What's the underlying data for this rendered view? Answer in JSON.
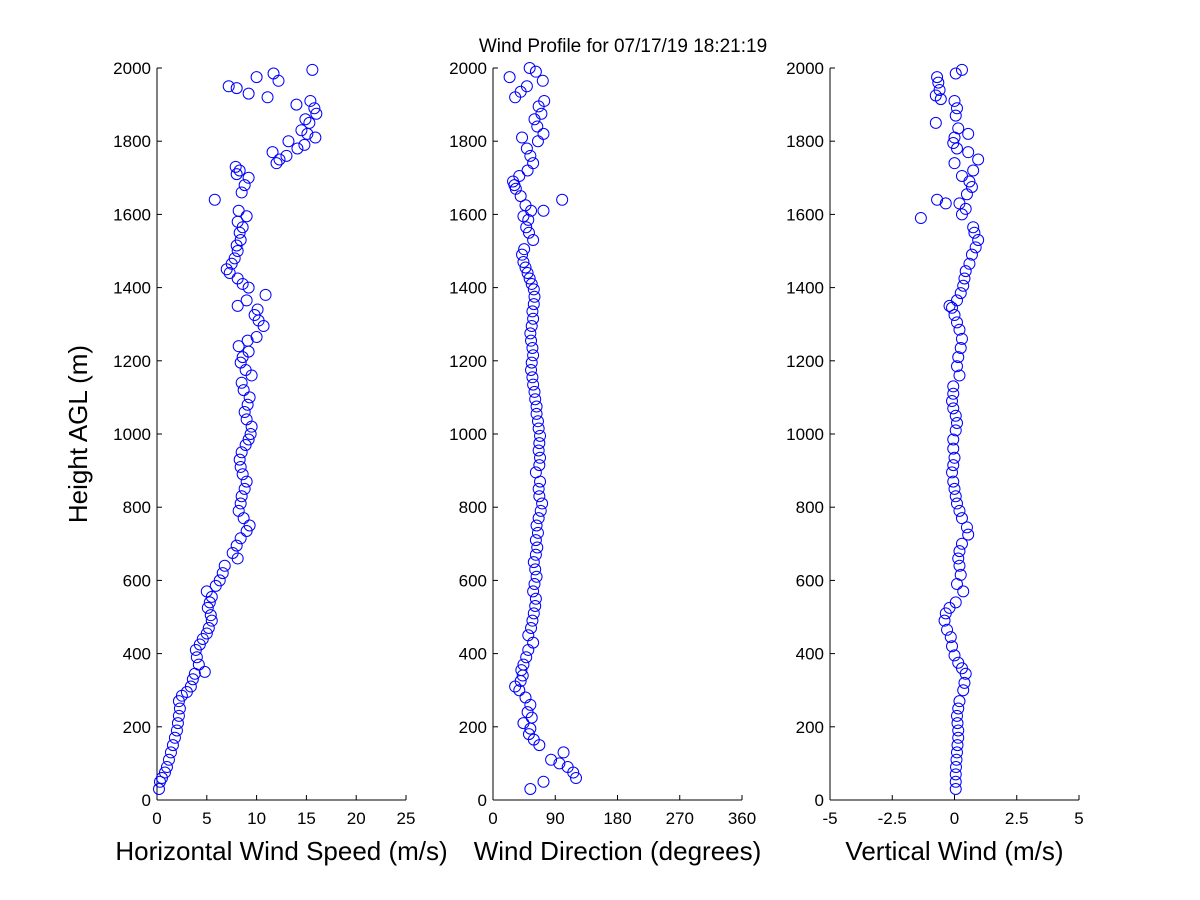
{
  "title": "Wind Profile for  07/17/19 18:21:19",
  "colors": {
    "marker": "#0000ff",
    "axis": "#000000",
    "background": "#ffffff"
  },
  "chart_data": [
    {
      "type": "scatter",
      "xlabel": "Horizontal Wind Speed (m/s)",
      "ylabel": "Height AGL (m)",
      "xlim": [
        0,
        25
      ],
      "ylim": [
        0,
        2000
      ],
      "xticks": [
        0,
        5,
        10,
        15,
        20,
        25
      ],
      "yticks": [
        0,
        200,
        400,
        600,
        800,
        1000,
        1200,
        1400,
        1600,
        1800,
        2000
      ],
      "grid": false,
      "marker": "open-circle",
      "points": [
        [
          0.2,
          30
        ],
        [
          0.3,
          50
        ],
        [
          0.5,
          60
        ],
        [
          0.8,
          75
        ],
        [
          1.0,
          90
        ],
        [
          1.2,
          110
        ],
        [
          1.4,
          130
        ],
        [
          1.6,
          150
        ],
        [
          1.8,
          170
        ],
        [
          2.0,
          190
        ],
        [
          2.1,
          210
        ],
        [
          2.2,
          230
        ],
        [
          2.3,
          250
        ],
        [
          2.2,
          270
        ],
        [
          2.5,
          285
        ],
        [
          3.0,
          295
        ],
        [
          3.4,
          310
        ],
        [
          3.6,
          330
        ],
        [
          3.8,
          345
        ],
        [
          4.8,
          350
        ],
        [
          4.2,
          370
        ],
        [
          4.0,
          390
        ],
        [
          3.9,
          410
        ],
        [
          4.3,
          425
        ],
        [
          4.6,
          440
        ],
        [
          5.0,
          455
        ],
        [
          5.2,
          470
        ],
        [
          5.5,
          490
        ],
        [
          5.4,
          505
        ],
        [
          5.1,
          525
        ],
        [
          5.3,
          540
        ],
        [
          5.5,
          555
        ],
        [
          5.0,
          570
        ],
        [
          5.9,
          585
        ],
        [
          6.3,
          600
        ],
        [
          6.6,
          620
        ],
        [
          6.8,
          640
        ],
        [
          8.1,
          660
        ],
        [
          7.6,
          675
        ],
        [
          8.0,
          695
        ],
        [
          8.4,
          715
        ],
        [
          9.0,
          735
        ],
        [
          9.3,
          750
        ],
        [
          8.7,
          770
        ],
        [
          8.2,
          790
        ],
        [
          8.4,
          810
        ],
        [
          8.5,
          830
        ],
        [
          8.8,
          850
        ],
        [
          9.0,
          870
        ],
        [
          8.6,
          890
        ],
        [
          8.4,
          910
        ],
        [
          8.3,
          930
        ],
        [
          8.5,
          950
        ],
        [
          8.9,
          970
        ],
        [
          9.2,
          985
        ],
        [
          9.4,
          1000
        ],
        [
          9.5,
          1020
        ],
        [
          9.0,
          1040
        ],
        [
          8.8,
          1060
        ],
        [
          9.1,
          1080
        ],
        [
          9.3,
          1100
        ],
        [
          8.7,
          1120
        ],
        [
          8.5,
          1140
        ],
        [
          9.5,
          1160
        ],
        [
          8.9,
          1175
        ],
        [
          8.4,
          1195
        ],
        [
          8.6,
          1210
        ],
        [
          9.2,
          1225
        ],
        [
          8.2,
          1240
        ],
        [
          9.1,
          1255
        ],
        [
          10.0,
          1265
        ],
        [
          10.7,
          1295
        ],
        [
          10.2,
          1310
        ],
        [
          9.8,
          1325
        ],
        [
          10.1,
          1340
        ],
        [
          8.1,
          1350
        ],
        [
          9.0,
          1365
        ],
        [
          10.9,
          1380
        ],
        [
          9.2,
          1400
        ],
        [
          8.6,
          1410
        ],
        [
          8.1,
          1425
        ],
        [
          7.3,
          1440
        ],
        [
          7.0,
          1450
        ],
        [
          7.5,
          1465
        ],
        [
          7.8,
          1480
        ],
        [
          8.1,
          1500
        ],
        [
          8.0,
          1515
        ],
        [
          8.4,
          1530
        ],
        [
          8.3,
          1550
        ],
        [
          8.6,
          1565
        ],
        [
          8.1,
          1580
        ],
        [
          9.0,
          1595
        ],
        [
          8.2,
          1610
        ],
        [
          5.8,
          1640
        ],
        [
          8.5,
          1660
        ],
        [
          8.8,
          1680
        ],
        [
          9.2,
          1700
        ],
        [
          8.0,
          1710
        ],
        [
          8.3,
          1720
        ],
        [
          7.9,
          1730
        ],
        [
          12.0,
          1740
        ],
        [
          12.3,
          1750
        ],
        [
          11.6,
          1770
        ],
        [
          13.0,
          1760
        ],
        [
          14.1,
          1780
        ],
        [
          13.2,
          1800
        ],
        [
          14.8,
          1790
        ],
        [
          15.1,
          1820
        ],
        [
          15.9,
          1810
        ],
        [
          14.5,
          1830
        ],
        [
          15.3,
          1850
        ],
        [
          14.9,
          1860
        ],
        [
          16.0,
          1875
        ],
        [
          15.8,
          1890
        ],
        [
          14.0,
          1900
        ],
        [
          15.4,
          1910
        ],
        [
          11.1,
          1920
        ],
        [
          9.2,
          1930
        ],
        [
          8.0,
          1945
        ],
        [
          7.2,
          1950
        ],
        [
          12.2,
          1965
        ],
        [
          10.0,
          1975
        ],
        [
          11.7,
          1985
        ],
        [
          15.6,
          1995
        ]
      ]
    },
    {
      "type": "scatter",
      "xlabel": "Wind Direction (degrees)",
      "xlim": [
        0,
        360
      ],
      "ylim": [
        0,
        2000
      ],
      "xticks": [
        0,
        90,
        180,
        270,
        360
      ],
      "yticks": [
        0,
        200,
        400,
        600,
        800,
        1000,
        1200,
        1400,
        1600,
        1800,
        2000
      ],
      "grid": false,
      "marker": "open-circle",
      "points": [
        [
          54,
          30
        ],
        [
          73,
          50
        ],
        [
          120,
          60
        ],
        [
          116,
          75
        ],
        [
          108,
          90
        ],
        [
          96,
          100
        ],
        [
          84,
          110
        ],
        [
          102,
          130
        ],
        [
          67,
          150
        ],
        [
          59,
          165
        ],
        [
          52,
          180
        ],
        [
          54,
          195
        ],
        [
          44,
          210
        ],
        [
          56,
          225
        ],
        [
          50,
          240
        ],
        [
          54,
          260
        ],
        [
          47,
          280
        ],
        [
          38,
          300
        ],
        [
          32,
          310
        ],
        [
          40,
          325
        ],
        [
          43,
          340
        ],
        [
          41,
          355
        ],
        [
          44,
          370
        ],
        [
          48,
          390
        ],
        [
          51,
          410
        ],
        [
          58,
          430
        ],
        [
          51,
          450
        ],
        [
          55,
          470
        ],
        [
          57,
          490
        ],
        [
          59,
          510
        ],
        [
          61,
          530
        ],
        [
          62,
          550
        ],
        [
          58,
          570
        ],
        [
          60,
          590
        ],
        [
          63,
          610
        ],
        [
          61,
          630
        ],
        [
          59,
          650
        ],
        [
          62,
          670
        ],
        [
          64,
          690
        ],
        [
          62,
          710
        ],
        [
          65,
          730
        ],
        [
          63,
          750
        ],
        [
          66,
          770
        ],
        [
          69,
          790
        ],
        [
          71,
          810
        ],
        [
          67,
          830
        ],
        [
          66,
          850
        ],
        [
          68,
          870
        ],
        [
          62,
          895
        ],
        [
          67,
          915
        ],
        [
          68,
          935
        ],
        [
          66,
          955
        ],
        [
          67,
          975
        ],
        [
          68,
          995
        ],
        [
          66,
          1015
        ],
        [
          65,
          1035
        ],
        [
          63,
          1055
        ],
        [
          63,
          1075
        ],
        [
          61,
          1095
        ],
        [
          60,
          1115
        ],
        [
          58,
          1135
        ],
        [
          57,
          1155
        ],
        [
          55,
          1175
        ],
        [
          56,
          1195
        ],
        [
          58,
          1215
        ],
        [
          57,
          1235
        ],
        [
          55,
          1255
        ],
        [
          54,
          1275
        ],
        [
          56,
          1295
        ],
        [
          58,
          1315
        ],
        [
          57,
          1335
        ],
        [
          59,
          1355
        ],
        [
          60,
          1375
        ],
        [
          59,
          1395
        ],
        [
          56,
          1410
        ],
        [
          53,
          1425
        ],
        [
          50,
          1440
        ],
        [
          47,
          1455
        ],
        [
          44,
          1470
        ],
        [
          42,
          1490
        ],
        [
          45,
          1505
        ],
        [
          58,
          1530
        ],
        [
          52,
          1550
        ],
        [
          48,
          1565
        ],
        [
          51,
          1585
        ],
        [
          44,
          1595
        ],
        [
          55,
          1610
        ],
        [
          73,
          1610
        ],
        [
          47,
          1625
        ],
        [
          100,
          1640
        ],
        [
          40,
          1650
        ],
        [
          33,
          1670
        ],
        [
          29,
          1690
        ],
        [
          38,
          1705
        ],
        [
          31,
          1680
        ],
        [
          50,
          1720
        ],
        [
          58,
          1740
        ],
        [
          54,
          1760
        ],
        [
          49,
          1780
        ],
        [
          65,
          1800
        ],
        [
          42,
          1810
        ],
        [
          73,
          1820
        ],
        [
          64,
          1840
        ],
        [
          60,
          1860
        ],
        [
          70,
          1875
        ],
        [
          66,
          1895
        ],
        [
          74,
          1910
        ],
        [
          32,
          1920
        ],
        [
          40,
          1935
        ],
        [
          49,
          1950
        ],
        [
          72,
          1965
        ],
        [
          24,
          1975
        ],
        [
          62,
          1990
        ],
        [
          53,
          2000
        ]
      ]
    },
    {
      "type": "scatter",
      "xlabel": "Vertical Wind (m/s)",
      "xlim": [
        -5,
        5
      ],
      "ylim": [
        0,
        2000
      ],
      "xticks": [
        "-5",
        "-2.5",
        "0",
        "2.5",
        "5"
      ],
      "yticks": [
        0,
        200,
        400,
        600,
        800,
        1000,
        1200,
        1400,
        1600,
        1800,
        2000
      ],
      "grid": false,
      "marker": "open-circle",
      "points": [
        [
          0.05,
          30
        ],
        [
          0.05,
          50
        ],
        [
          0.05,
          70
        ],
        [
          0.06,
          90
        ],
        [
          0.08,
          110
        ],
        [
          0.1,
          130
        ],
        [
          0.12,
          150
        ],
        [
          0.15,
          170
        ],
        [
          0.15,
          190
        ],
        [
          0.12,
          210
        ],
        [
          0.1,
          230
        ],
        [
          0.15,
          250
        ],
        [
          0.2,
          270
        ],
        [
          0.35,
          300
        ],
        [
          0.4,
          320
        ],
        [
          0.45,
          345
        ],
        [
          0.3,
          360
        ],
        [
          0.15,
          375
        ],
        [
          0.0,
          395
        ],
        [
          -0.1,
          420
        ],
        [
          -0.15,
          445
        ],
        [
          -0.3,
          465
        ],
        [
          -0.4,
          490
        ],
        [
          -0.35,
          510
        ],
        [
          -0.2,
          525
        ],
        [
          0.05,
          540
        ],
        [
          0.35,
          570
        ],
        [
          0.1,
          590
        ],
        [
          0.25,
          615
        ],
        [
          0.2,
          640
        ],
        [
          0.15,
          660
        ],
        [
          0.2,
          680
        ],
        [
          0.3,
          700
        ],
        [
          0.55,
          725
        ],
        [
          0.5,
          745
        ],
        [
          0.3,
          770
        ],
        [
          0.2,
          790
        ],
        [
          0.1,
          810
        ],
        [
          0.05,
          830
        ],
        [
          0.0,
          850
        ],
        [
          -0.05,
          870
        ],
        [
          -0.1,
          895
        ],
        [
          -0.05,
          915
        ],
        [
          0.0,
          935
        ],
        [
          -0.05,
          960
        ],
        [
          -0.05,
          985
        ],
        [
          0.05,
          1010
        ],
        [
          0.1,
          1030
        ],
        [
          0.05,
          1050
        ],
        [
          -0.05,
          1070
        ],
        [
          -0.1,
          1090
        ],
        [
          -0.05,
          1110
        ],
        [
          -0.05,
          1130
        ],
        [
          0.2,
          1160
        ],
        [
          0.1,
          1185
        ],
        [
          0.15,
          1210
        ],
        [
          0.25,
          1235
        ],
        [
          0.3,
          1260
        ],
        [
          0.2,
          1285
        ],
        [
          0.1,
          1305
        ],
        [
          0.0,
          1325
        ],
        [
          -0.1,
          1345
        ],
        [
          -0.2,
          1350
        ],
        [
          0.1,
          1365
        ],
        [
          0.25,
          1385
        ],
        [
          0.35,
          1405
        ],
        [
          0.4,
          1425
        ],
        [
          0.45,
          1445
        ],
        [
          0.6,
          1465
        ],
        [
          0.7,
          1490
        ],
        [
          0.85,
          1510
        ],
        [
          0.95,
          1530
        ],
        [
          0.8,
          1550
        ],
        [
          0.75,
          1565
        ],
        [
          -1.35,
          1590
        ],
        [
          0.3,
          1600
        ],
        [
          0.45,
          1615
        ],
        [
          0.2,
          1630
        ],
        [
          -0.35,
          1630
        ],
        [
          -0.7,
          1640
        ],
        [
          0.5,
          1655
        ],
        [
          0.7,
          1675
        ],
        [
          0.6,
          1690
        ],
        [
          0.3,
          1705
        ],
        [
          0.75,
          1720
        ],
        [
          0.0,
          1740
        ],
        [
          0.95,
          1750
        ],
        [
          0.55,
          1770
        ],
        [
          0.1,
          1780
        ],
        [
          -0.05,
          1795
        ],
        [
          0.0,
          1810
        ],
        [
          0.55,
          1820
        ],
        [
          0.15,
          1835
        ],
        [
          -0.75,
          1850
        ],
        [
          0.05,
          1870
        ],
        [
          0.1,
          1890
        ],
        [
          0.0,
          1910
        ],
        [
          -0.55,
          1915
        ],
        [
          -0.75,
          1925
        ],
        [
          -0.6,
          1940
        ],
        [
          -0.65,
          1960
        ],
        [
          -0.7,
          1975
        ],
        [
          0.05,
          1985
        ],
        [
          0.3,
          1995
        ]
      ]
    }
  ]
}
